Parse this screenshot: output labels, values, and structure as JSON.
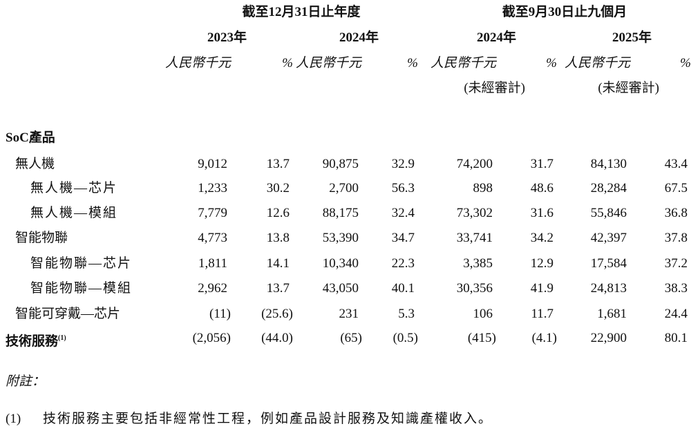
{
  "header": {
    "period_groups": [
      "截至12月31日止年度",
      "截至9月30日止九個月"
    ],
    "years": [
      "2023年",
      "2024年",
      "2024年",
      "2025年"
    ],
    "unit_label": "人民幣千元",
    "percent_label": "%",
    "unaudited_label": "(未經審計)"
  },
  "rows": [
    {
      "label": "SoC產品",
      "level": 0,
      "bold": true,
      "values": []
    },
    {
      "label": "無人機",
      "level": 1,
      "values": [
        "9,012",
        "13.7",
        "90,875",
        "32.9",
        "74,200",
        "31.7",
        "84,130",
        "43.4"
      ]
    },
    {
      "label": "無人機—芯片",
      "level": 2,
      "values": [
        "1,233",
        "30.2",
        "2,700",
        "56.3",
        "898",
        "48.6",
        "28,284",
        "67.5"
      ]
    },
    {
      "label": "無人機—模組",
      "level": 2,
      "values": [
        "7,779",
        "12.6",
        "88,175",
        "32.4",
        "73,302",
        "31.6",
        "55,846",
        "36.8"
      ]
    },
    {
      "label": "智能物聯",
      "level": 1,
      "values": [
        "4,773",
        "13.8",
        "53,390",
        "34.7",
        "33,741",
        "34.2",
        "42,397",
        "37.8"
      ]
    },
    {
      "label": "智能物聯—芯片",
      "level": 2,
      "values": [
        "1,811",
        "14.1",
        "10,340",
        "22.3",
        "3,385",
        "12.9",
        "17,584",
        "37.2"
      ]
    },
    {
      "label": "智能物聯—模組",
      "level": 2,
      "values": [
        "2,962",
        "13.7",
        "43,050",
        "40.1",
        "30,356",
        "41.9",
        "24,813",
        "38.3"
      ]
    },
    {
      "label": "智能可穿戴—芯片",
      "level": 1,
      "values": [
        "(11)",
        "(25.6)",
        "231",
        "5.3",
        "106",
        "11.7",
        "1,681",
        "24.4"
      ]
    },
    {
      "label": "技術服務",
      "footnote_ref": "(1)",
      "level": 0,
      "bold": true,
      "values": [
        "(2,056)",
        "(44.0)",
        "(65)",
        "(0.5)",
        "(415)",
        "(4.1)",
        "22,900",
        "80.1"
      ]
    }
  ],
  "notes": {
    "title": "附註：",
    "items": [
      {
        "marker": "(1)",
        "text": "技術服務主要包括非經常性工程，例如產品設計服務及知識產權收入。"
      }
    ]
  }
}
